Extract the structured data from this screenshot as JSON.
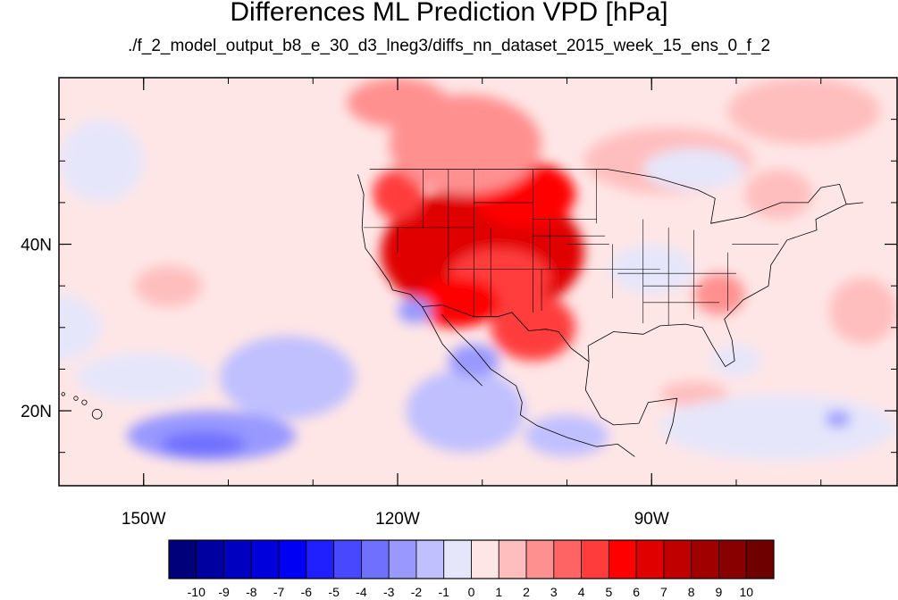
{
  "chart_data": {
    "type": "heatmap",
    "title": "Differences ML Prediction VPD [hPa]",
    "subtitle": "./f_2_model_output_b8_e_30_d3_lneg3/diffs_nn_dataset_2015_week_15_ens_0_f_2",
    "map": {
      "projection": "cylindrical-equidistant",
      "lon_range": [
        -160,
        -61
      ],
      "lat_range": [
        11,
        60
      ],
      "x_ticks": [
        {
          "value": -150,
          "label": "150W"
        },
        {
          "value": -120,
          "label": "120W"
        },
        {
          "value": -90,
          "label": "90W"
        }
      ],
      "y_ticks": [
        {
          "value": 20,
          "label": "20N"
        },
        {
          "value": 40,
          "label": "40N"
        }
      ],
      "minor_lon_step": 10,
      "minor_lat_step": 5
    },
    "colorbar": {
      "levels": [
        "-10",
        "-9",
        "-8",
        "-7",
        "-6",
        "-5",
        "-4",
        "-3",
        "-2",
        "-1",
        "0",
        "1",
        "2",
        "3",
        "4",
        "5",
        "6",
        "7",
        "8",
        "9",
        "10"
      ],
      "colors": [
        "#00007a",
        "#0000a0",
        "#0000c0",
        "#0000dc",
        "#0000f5",
        "#2020ff",
        "#4848ff",
        "#7070ff",
        "#9898ff",
        "#c0c0ff",
        "#e6e6fa",
        "#ffe6e6",
        "#ffbebe",
        "#ff9090",
        "#ff6464",
        "#ff3c3c",
        "#ff0000",
        "#e00000",
        "#c00000",
        "#a00000",
        "#880000",
        "#6e0000"
      ]
    },
    "field_blobs": [
      {
        "lon": -110,
        "lat": 39,
        "rlon": 12,
        "rlat": 8,
        "value": 6
      },
      {
        "lon": -108,
        "lat": 36,
        "rlon": 6,
        "rlat": 3.5,
        "value": 4
      },
      {
        "lon": -105,
        "lat": 46,
        "rlon": 6,
        "rlat": 4,
        "value": 5
      },
      {
        "lon": -120,
        "lat": 46,
        "rlon": 3,
        "rlat": 3,
        "value": 4
      },
      {
        "lon": -104,
        "lat": 30,
        "rlon": 5,
        "rlat": 4,
        "value": 4
      },
      {
        "lon": -113,
        "lat": 33,
        "rlon": 5,
        "rlat": 3,
        "value": 5
      },
      {
        "lon": -112,
        "lat": 52,
        "rlon": 9,
        "rlat": 6,
        "value": 2.5
      },
      {
        "lon": -120,
        "lat": 57,
        "rlon": 6,
        "rlat": 3,
        "value": 2
      },
      {
        "lon": -88,
        "lat": 50,
        "rlon": 10,
        "rlat": 4,
        "value": 1.8
      },
      {
        "lon": -72,
        "lat": 56,
        "rlon": 9,
        "rlat": 4,
        "value": 1.5
      },
      {
        "lon": -75,
        "lat": 46,
        "rlon": 4,
        "rlat": 3,
        "value": 1.2
      },
      {
        "lon": -140,
        "lat": 38,
        "rlon": 9,
        "rlat": 6,
        "value": 0.9
      },
      {
        "lon": -147,
        "lat": 35,
        "rlon": 4,
        "rlat": 2.5,
        "value": 1.2
      },
      {
        "lon": -130,
        "lat": 44,
        "rlon": 6,
        "rlat": 5,
        "value": 0.6
      },
      {
        "lon": -82,
        "lat": 34,
        "rlon": 3,
        "rlat": 2.5,
        "value": 2.2
      },
      {
        "lon": -65,
        "lat": 32,
        "rlon": 4,
        "rlat": 4,
        "value": 1.4
      },
      {
        "lon": -85,
        "lat": 22,
        "rlon": 4,
        "rlat": 1.5,
        "value": 1.2
      },
      {
        "lon": -95,
        "lat": 18,
        "rlon": 3,
        "rlat": 2,
        "value": 0.8
      },
      {
        "lon": -142,
        "lat": 17,
        "rlon": 10,
        "rlat": 3,
        "value": -2.2
      },
      {
        "lon": -143,
        "lat": 16,
        "rlon": 5,
        "rlat": 1.5,
        "value": -3.5
      },
      {
        "lon": -133,
        "lat": 24,
        "rlon": 8,
        "rlat": 5,
        "value": -1.2
      },
      {
        "lon": -112,
        "lat": 20,
        "rlon": 7,
        "rlat": 5,
        "value": -1.3
      },
      {
        "lon": -111,
        "lat": 26,
        "rlon": 3,
        "rlat": 2,
        "value": -3
      },
      {
        "lon": -118,
        "lat": 32,
        "rlon": 2,
        "rlat": 1.5,
        "value": -2.5
      },
      {
        "lon": -100,
        "lat": 17,
        "rlon": 5,
        "rlat": 2.5,
        "value": -1.8
      },
      {
        "lon": -75,
        "lat": 18,
        "rlon": 14,
        "rlat": 4,
        "value": -0.6
      },
      {
        "lon": -80,
        "lat": 26,
        "rlon": 3,
        "rlat": 2,
        "value": -1
      },
      {
        "lon": -90,
        "lat": 37,
        "rlon": 5,
        "rlat": 3,
        "value": -0.6
      },
      {
        "lon": -85,
        "lat": 49,
        "rlon": 6,
        "rlat": 2.5,
        "value": -0.5
      },
      {
        "lon": -155,
        "lat": 50,
        "rlon": 5,
        "rlat": 5,
        "value": -0.5
      },
      {
        "lon": -150,
        "lat": 24,
        "rlon": 8,
        "rlat": 3,
        "value": -0.8
      },
      {
        "lon": -160,
        "lat": 30,
        "rlon": 5,
        "rlat": 4,
        "value": -0.6
      },
      {
        "lon": -68,
        "lat": 19,
        "rlon": 1.5,
        "rlat": 1,
        "value": -3
      }
    ]
  }
}
